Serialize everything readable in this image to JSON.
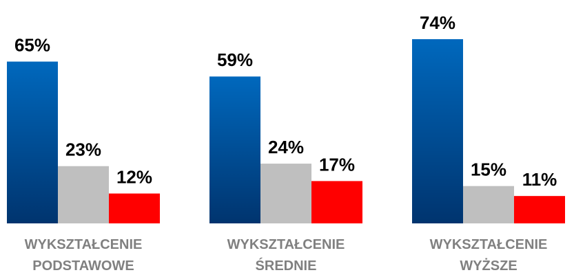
{
  "chart_data": {
    "type": "bar",
    "categories": [
      "WYKSZTAŁCENIE PODSTAWOWE",
      "WYKSZTAŁCENIE ŚREDNIE",
      "WYKSZTAŁCENIE WYŻSZE"
    ],
    "series": [
      {
        "color": "#0068bd",
        "gradient": true,
        "values": [
          65,
          59,
          74
        ],
        "value_labels": [
          "65%",
          "59%",
          "74%"
        ]
      },
      {
        "color": "#bfbfbf",
        "values": [
          23,
          24,
          15
        ],
        "value_labels": [
          "23%",
          "24%",
          "15%"
        ]
      },
      {
        "color": "#ff0000",
        "values": [
          12,
          17,
          11
        ],
        "value_labels": [
          "12%",
          "17%",
          "11%"
        ]
      }
    ]
  }
}
